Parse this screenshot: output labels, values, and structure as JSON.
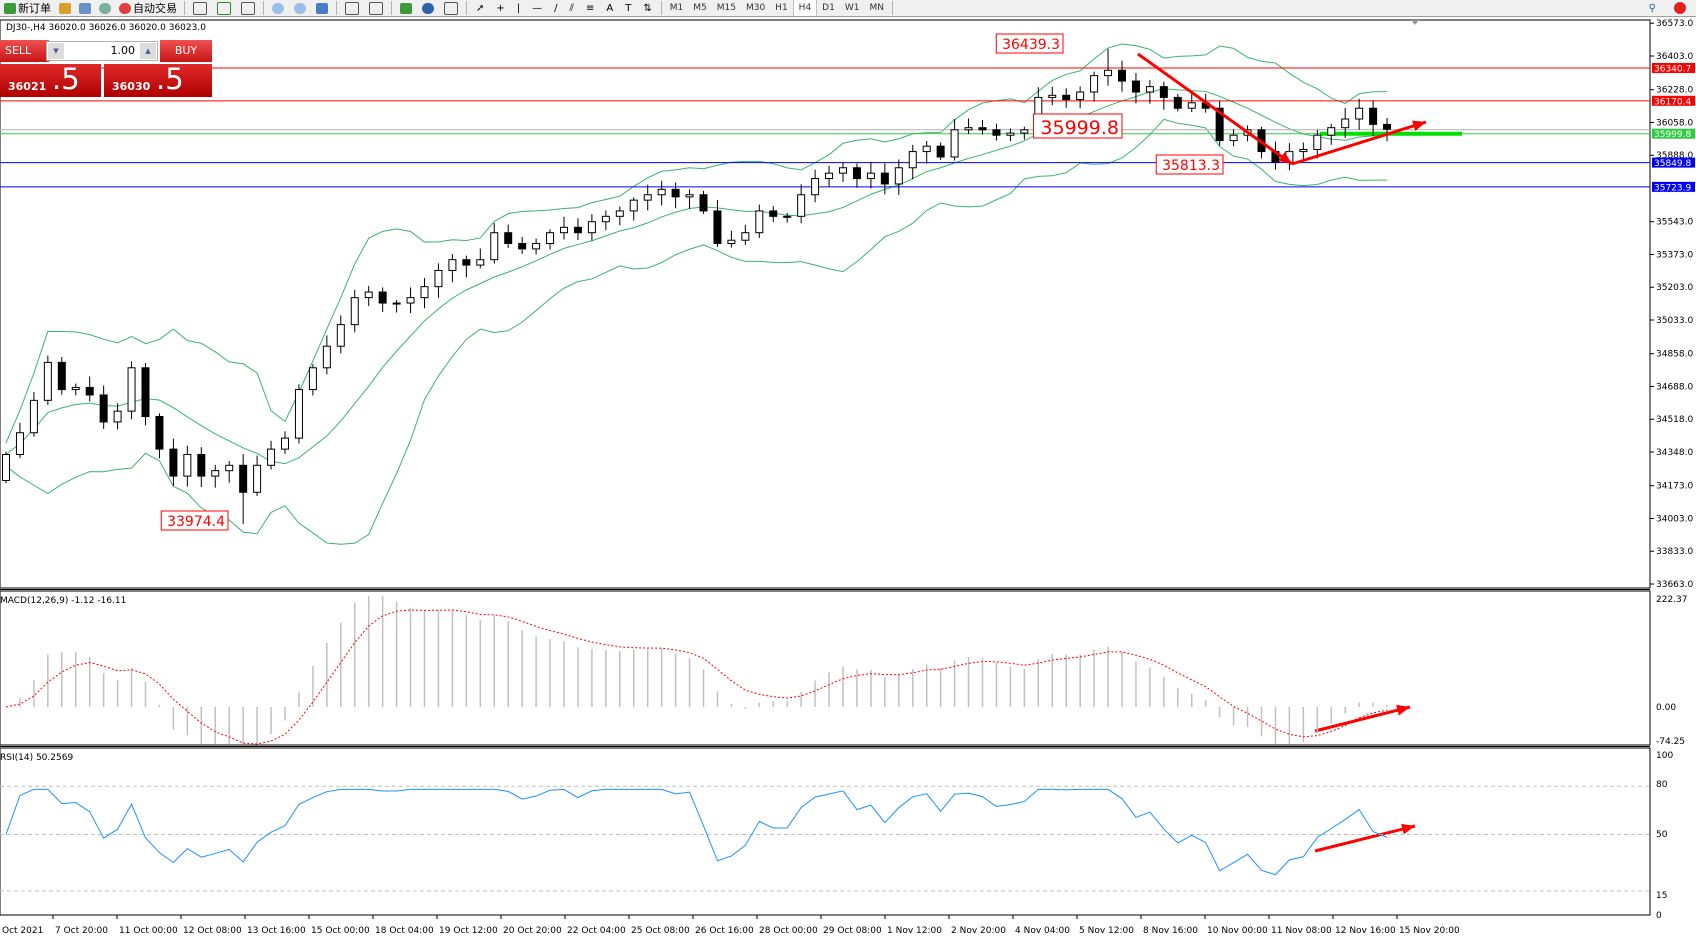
{
  "toolbar": {
    "new_order": "新订单",
    "auto_trading": "自动交易",
    "timeframes": [
      "M1",
      "M5",
      "M15",
      "M30",
      "H1",
      "H4",
      "D1",
      "W1",
      "MN"
    ],
    "active_timeframe": "H4"
  },
  "chart_header": "DJ30-,H4  36020.0 36026.0 36020.0 36023.0",
  "one_click": {
    "sell_label": "SELL",
    "buy_label": "BUY",
    "lot": "1.00",
    "bid_main": "36021",
    "bid_last": ".5",
    "ask_main": "36030",
    "ask_last": ".5"
  },
  "chart_data": {
    "type": "candlestick",
    "symbol": "DJ30-",
    "timeframe": "H4",
    "closes": [
      34335,
      34448,
      34616,
      34813,
      34672,
      34683,
      34644,
      34504,
      34560,
      34785,
      34532,
      34363,
      34223,
      34335,
      34223,
      34251,
      34279,
      34139,
      34279,
      34363,
      34420,
      34672,
      34785,
      34897,
      35009,
      35149,
      35178,
      35121,
      35121,
      35149,
      35206,
      35290,
      35346,
      35318,
      35346,
      35486,
      35430,
      35402,
      35430,
      35486,
      35514,
      35486,
      35543,
      35571,
      35599,
      35655,
      35683,
      35711,
      35672,
      35683,
      35599,
      35430,
      35447,
      35486,
      35599,
      35571,
      35571,
      35683,
      35767,
      35795,
      35823,
      35767,
      35795,
      35739,
      35823,
      35907,
      35935,
      35879,
      36020,
      36031,
      36020,
      35992,
      36003,
      36020,
      36188,
      36199,
      36177,
      36216,
      36301,
      36329,
      36273,
      36216,
      36244,
      36188,
      36132,
      36160,
      36132,
      35964,
      35992,
      36020,
      35907,
      35851,
      35907,
      35918,
      35992,
      36031,
      36076,
      36132,
      36048,
      36023
    ],
    "price_axis_ticks": [
      "36573.0",
      "36403.0",
      "36228.0",
      "36058.0",
      "35888.0",
      "35543.0",
      "35373.0",
      "35203.0",
      "35033.0",
      "34858.0",
      "34688.0",
      "34518.0",
      "34348.0",
      "34173.0",
      "34003.0",
      "33833.0",
      "33663.0"
    ],
    "price_range": [
      33663,
      36573
    ],
    "horizontal_lines": [
      {
        "price": 36340.7,
        "label": "36340.7",
        "color": "#ff0000"
      },
      {
        "price": 36170.4,
        "label": "36170.4",
        "color": "#ff0000"
      },
      {
        "price": 35999.8,
        "label": "35999.8",
        "color": "#2ecc40"
      },
      {
        "price": 35849.8,
        "label": "35849.8",
        "color": "#0000ff"
      },
      {
        "price": 35723.9,
        "label": "35723.9",
        "color": "#0000ff"
      }
    ],
    "bid_line": 36020.0,
    "price_labels": [
      {
        "text": "36439.3",
        "price": 36439.3
      },
      {
        "text": "35999.8",
        "price": 35999.8
      },
      {
        "text": "35813.3",
        "price": 35813.3
      },
      {
        "text": "33974.4",
        "price": 33974.4
      }
    ],
    "bollinger_color": "#3cb371",
    "macd": {
      "label": "MACD(12,26,9) -1.12 -16.11",
      "axis_ticks": [
        "222.37",
        "0.00",
        "-74.25"
      ],
      "range": [
        -74.25,
        222.37
      ],
      "signal_color": "#ff0000",
      "histogram_color": "#c0c0c0"
    },
    "rsi": {
      "label": "RSI(14) 50.2569",
      "axis_ticks": [
        "100",
        "80",
        "50",
        "15",
        "0"
      ],
      "levels": [
        80,
        50,
        15
      ],
      "line_color": "#1e90ff"
    },
    "time_labels": [
      "Oct 2021",
      "7 Oct 20:00",
      "11 Oct 00:00",
      "12 Oct 08:00",
      "13 Oct 16:00",
      "15 Oct 00:00",
      "18 Oct 04:00",
      "19 Oct 12:00",
      "20 Oct 20:00",
      "22 Oct 04:00",
      "25 Oct 08:00",
      "26 Oct 16:00",
      "28 Oct 00:00",
      "29 Oct 08:00",
      "1 Nov 12:00",
      "2 Nov 20:00",
      "4 Nov 04:00",
      "5 Nov 12:00",
      "8 Nov 16:00",
      "10 Nov 00:00",
      "11 Nov 08:00",
      "12 Nov 16:00",
      "15 Nov 20:00"
    ],
    "arrow_color": "#ff0000"
  }
}
